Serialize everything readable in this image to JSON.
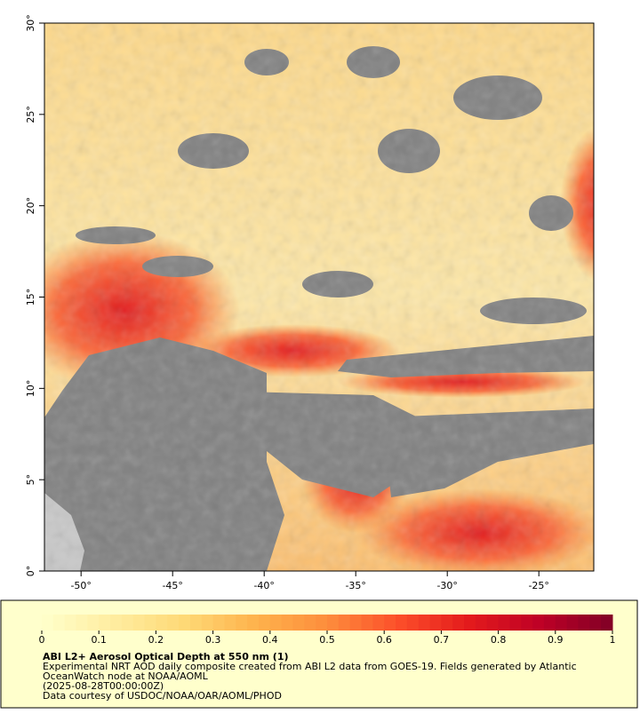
{
  "map": {
    "xlim": [
      -52,
      -22
    ],
    "ylim": [
      0,
      30
    ],
    "xticks": [
      {
        "value": -50,
        "label": "-50°"
      },
      {
        "value": -45,
        "label": "-45°"
      },
      {
        "value": -40,
        "label": "-40°"
      },
      {
        "value": -35,
        "label": "-35°"
      },
      {
        "value": -30,
        "label": "-30°"
      },
      {
        "value": -25,
        "label": "-25°"
      }
    ],
    "yticks": [
      {
        "value": 0,
        "label": "0°"
      },
      {
        "value": 5,
        "label": "5°"
      },
      {
        "value": 10,
        "label": "10°"
      },
      {
        "value": 15,
        "label": "15°"
      },
      {
        "value": 20,
        "label": "20°"
      },
      {
        "value": 25,
        "label": "25°"
      },
      {
        "value": 30,
        "label": "30°"
      }
    ]
  },
  "colorbar": {
    "lim": [
      0,
      1
    ],
    "ticks": [
      0,
      0.1,
      0.2,
      0.3,
      0.4,
      0.5,
      0.6,
      0.7,
      0.8,
      0.9,
      1
    ],
    "colors": [
      "#ffffcc",
      "#ffeda0",
      "#fed976",
      "#feb24c",
      "#fd8d3c",
      "#fc4e2a",
      "#e31a1c",
      "#bd0026",
      "#800026"
    ]
  },
  "caption": {
    "title": "ABI L2+ Aerosol Optical Depth at 550 nm (1)",
    "lines": [
      "Experimental NRT AOD daily composite created from ABI L2 data from GOES-19. Fields generated by Atlantic",
      "OceanWatch node at NOAA/AOML",
      "(2025-08-28T00:00:00Z)",
      "Data courtesy of USDOC/NOAA/OAR/AOML/PHOD"
    ]
  }
}
